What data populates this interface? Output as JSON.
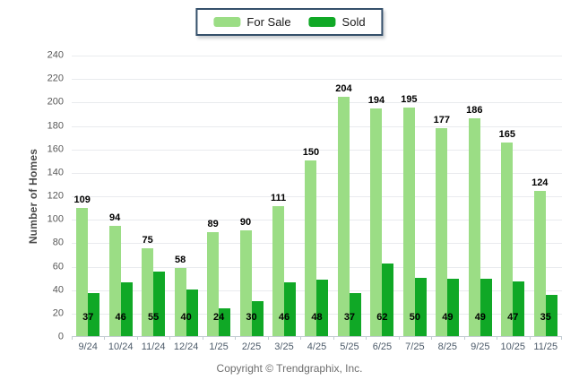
{
  "chart_data": {
    "type": "bar",
    "categories": [
      "9/24",
      "10/24",
      "11/24",
      "12/24",
      "1/25",
      "2/25",
      "3/25",
      "4/25",
      "5/25",
      "6/25",
      "7/25",
      "8/25",
      "9/25",
      "10/25",
      "11/25"
    ],
    "series": [
      {
        "name": "For Sale",
        "color": "#9BDD85",
        "values": [
          109,
          94,
          75,
          58,
          89,
          90,
          111,
          150,
          204,
          194,
          195,
          177,
          186,
          165,
          124
        ]
      },
      {
        "name": "Sold",
        "color": "#10A826",
        "values": [
          37,
          46,
          55,
          40,
          24,
          30,
          46,
          48,
          37,
          62,
          50,
          49,
          49,
          47,
          35
        ]
      }
    ],
    "title": "",
    "xlabel": "",
    "ylabel": "Number of Homes",
    "ylim": [
      0,
      240
    ],
    "ytick_step": 20,
    "grid": "horizontal",
    "legend_position": "top-center",
    "value_labels": "For Sale values above bars, Sold values near bar bases"
  },
  "legend": {
    "items": [
      {
        "label": "For Sale",
        "color": "#9BDD85"
      },
      {
        "label": "Sold",
        "color": "#10A826"
      }
    ]
  },
  "footer": {
    "text": "Copyright © Trendgraphix, Inc."
  },
  "colors": {
    "for_sale": "#9BDD85",
    "sold": "#10A826",
    "legend_border": "#35506B",
    "gridline": "#E9EBEE",
    "axis_line": "#C2CBD2",
    "bar_label": "#000000",
    "x_tick_label": "#4D5B6A",
    "y_tick_label": "#595959",
    "axis_title": "#4A4A4A",
    "footer_text": "#6E6E6E"
  }
}
